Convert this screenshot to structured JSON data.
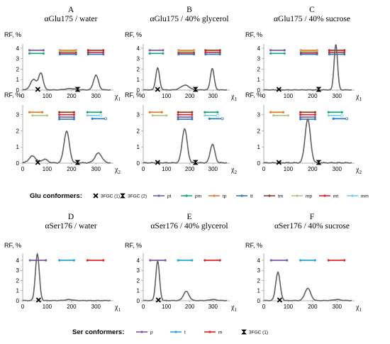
{
  "chart_data": [
    {
      "type": "line",
      "letter": "A",
      "title": "αGlu175 / water",
      "ylabel": "RF, %",
      "xlabel": "χ",
      "xsub": "1",
      "xlim": [
        0,
        360
      ],
      "ylim": [
        0,
        4.4
      ],
      "xticks": [
        0,
        100,
        200,
        300
      ],
      "yticks": [
        0,
        1,
        2,
        3,
        4
      ],
      "peaks": [
        [
          45,
          1.0,
          13
        ],
        [
          75,
          1.55,
          9
        ],
        [
          195,
          0.12,
          20
        ],
        [
          300,
          1.4,
          10
        ]
      ],
      "markers": [
        {
          "kind": "fgc1",
          "x": 62,
          "y": 0
        },
        {
          "kind": "fgc2",
          "x": 225,
          "y": 0
        }
      ],
      "bars": [
        {
          "c": "pt",
          "x1": 28,
          "x2": 85,
          "y": 3.8
        },
        {
          "c": "pm",
          "x1": 28,
          "x2": 85,
          "y": 3.5
        },
        {
          "c": "tp",
          "x1": 152,
          "x2": 218,
          "y": 3.8
        },
        {
          "c": "mp",
          "x1": 152,
          "x2": 218,
          "y": 3.68
        },
        {
          "c": "mt",
          "x1": 152,
          "x2": 218,
          "y": 3.55
        },
        {
          "c": "tt",
          "x1": 152,
          "x2": 218,
          "y": 3.42
        },
        {
          "c": "tm",
          "x1": 268,
          "x2": 330,
          "y": 3.8
        },
        {
          "c": "mt",
          "x1": 268,
          "x2": 330,
          "y": 3.6
        },
        {
          "c": "tt",
          "x1": 268,
          "x2": 330,
          "y": 3.42
        }
      ]
    },
    {
      "type": "line",
      "letter": "B",
      "title": "αGlu175 / 40% glycerol",
      "ylabel": "RF, %",
      "xlabel": "χ",
      "xsub": "1",
      "xlim": [
        0,
        360
      ],
      "ylim": [
        0,
        4.4
      ],
      "xticks": [
        0,
        100,
        200,
        300
      ],
      "yticks": [
        0,
        1,
        2,
        3,
        4
      ],
      "peaks": [
        [
          62,
          2.1,
          8
        ],
        [
          180,
          0.45,
          18
        ],
        [
          297,
          2.05,
          8
        ]
      ],
      "markers": [
        {
          "kind": "fgc1",
          "x": 62,
          "y": 0
        },
        {
          "kind": "fgc2",
          "x": 225,
          "y": 0
        }
      ],
      "bars": [
        {
          "c": "pt",
          "x1": 28,
          "x2": 85,
          "y": 3.8
        },
        {
          "c": "pm",
          "x1": 28,
          "x2": 85,
          "y": 3.5
        },
        {
          "c": "tp",
          "x1": 152,
          "x2": 218,
          "y": 3.8
        },
        {
          "c": "mp",
          "x1": 152,
          "x2": 218,
          "y": 3.68
        },
        {
          "c": "mt",
          "x1": 152,
          "x2": 218,
          "y": 3.55
        },
        {
          "c": "tt",
          "x1": 152,
          "x2": 218,
          "y": 3.42
        },
        {
          "c": "tm",
          "x1": 268,
          "x2": 330,
          "y": 3.8
        },
        {
          "c": "mt",
          "x1": 268,
          "x2": 330,
          "y": 3.6
        },
        {
          "c": "tt",
          "x1": 268,
          "x2": 330,
          "y": 3.42
        }
      ]
    },
    {
      "type": "line",
      "letter": "C",
      "title": "αGlu175 / 40% sucrose",
      "ylabel": "RF, %",
      "xlabel": "χ",
      "xsub": "1",
      "xlim": [
        0,
        360
      ],
      "ylim": [
        0,
        4.4
      ],
      "xticks": [
        0,
        100,
        200,
        300
      ],
      "yticks": [
        0,
        1,
        2,
        3,
        4
      ],
      "peaks": [
        [
          295,
          4.35,
          7
        ]
      ],
      "markers": [
        {
          "kind": "fgc1",
          "x": 62,
          "y": 0
        },
        {
          "kind": "fgc2",
          "x": 225,
          "y": 0
        }
      ],
      "bars": [
        {
          "c": "pt",
          "x1": 28,
          "x2": 85,
          "y": 3.8
        },
        {
          "c": "pm",
          "x1": 28,
          "x2": 85,
          "y": 3.5
        },
        {
          "c": "tp",
          "x1": 152,
          "x2": 218,
          "y": 3.8
        },
        {
          "c": "mp",
          "x1": 152,
          "x2": 218,
          "y": 3.68
        },
        {
          "c": "mt",
          "x1": 152,
          "x2": 218,
          "y": 3.55
        },
        {
          "c": "tt",
          "x1": 152,
          "x2": 218,
          "y": 3.42
        },
        {
          "c": "tm",
          "x1": 268,
          "x2": 330,
          "y": 3.8
        },
        {
          "c": "mt",
          "x1": 268,
          "x2": 330,
          "y": 3.6
        },
        {
          "c": "tt",
          "x1": 268,
          "x2": 330,
          "y": 3.42
        }
      ]
    },
    {
      "type": "line",
      "letter": "",
      "title": "",
      "ylabel": "RF, %",
      "xlabel": "χ",
      "xsub": "2",
      "xlim": [
        0,
        360
      ],
      "ylim": [
        0,
        3.6
      ],
      "xticks": [
        0,
        100,
        200,
        300
      ],
      "yticks": [
        0,
        1,
        2,
        3
      ],
      "peaks": [
        [
          40,
          0.42,
          14
        ],
        [
          90,
          0.22,
          12
        ],
        [
          180,
          1.95,
          11
        ],
        [
          310,
          0.6,
          14
        ]
      ],
      "markers": [
        {
          "kind": "fgc1",
          "x": 62,
          "y": 0
        },
        {
          "kind": "fgc2",
          "x": 225,
          "y": 0
        }
      ],
      "bars": [
        {
          "c": "tp",
          "x1": 28,
          "x2": 80,
          "y": 3.15
        },
        {
          "c": "mp",
          "x1": 40,
          "x2": 100,
          "y": 2.95
        },
        {
          "c": "tm",
          "x1": 150,
          "x2": 210,
          "y": 3.15
        },
        {
          "c": "mt",
          "x1": 150,
          "x2": 210,
          "y": 3.0
        },
        {
          "c": "pt",
          "x1": 150,
          "x2": 210,
          "y": 2.85
        },
        {
          "c": "tt",
          "x1": 150,
          "x2": 210,
          "y": 2.72
        },
        {
          "c": "pm",
          "x1": 265,
          "x2": 320,
          "y": 3.15
        },
        {
          "c": "mm",
          "x1": 265,
          "x2": 320,
          "y": 2.95
        },
        {
          "c": "tt",
          "x1": 285,
          "x2": 340,
          "y": 2.75
        }
      ]
    },
    {
      "type": "line",
      "letter": "",
      "title": "",
      "ylabel": "RF, %",
      "xlabel": "χ",
      "xsub": "2",
      "xlim": [
        0,
        360
      ],
      "ylim": [
        0,
        3.6
      ],
      "xticks": [
        0,
        100,
        200,
        300
      ],
      "yticks": [
        0,
        1,
        2,
        3
      ],
      "peaks": [
        [
          178,
          2.1,
          11
        ],
        [
          298,
          1.15,
          10
        ]
      ],
      "markers": [
        {
          "kind": "fgc1",
          "x": 62,
          "y": 0
        },
        {
          "kind": "fgc2",
          "x": 225,
          "y": 0
        }
      ],
      "bars": [
        {
          "c": "tp",
          "x1": 28,
          "x2": 80,
          "y": 3.15
        },
        {
          "c": "mp",
          "x1": 40,
          "x2": 100,
          "y": 2.95
        },
        {
          "c": "tm",
          "x1": 150,
          "x2": 210,
          "y": 3.15
        },
        {
          "c": "mt",
          "x1": 150,
          "x2": 210,
          "y": 3.0
        },
        {
          "c": "pt",
          "x1": 150,
          "x2": 210,
          "y": 2.85
        },
        {
          "c": "tt",
          "x1": 150,
          "x2": 210,
          "y": 2.72
        },
        {
          "c": "pm",
          "x1": 265,
          "x2": 320,
          "y": 3.15
        },
        {
          "c": "mm",
          "x1": 265,
          "x2": 320,
          "y": 2.95
        },
        {
          "c": "tt",
          "x1": 285,
          "x2": 340,
          "y": 2.75
        }
      ]
    },
    {
      "type": "line",
      "letter": "",
      "title": "",
      "ylabel": "RF, %",
      "xlabel": "χ",
      "xsub": "2",
      "xlim": [
        0,
        360
      ],
      "ylim": [
        0,
        3.6
      ],
      "xticks": [
        0,
        100,
        200,
        300
      ],
      "yticks": [
        0,
        1,
        2,
        3
      ],
      "peaks": [
        [
          180,
          2.7,
          11
        ]
      ],
      "markers": [
        {
          "kind": "fgc1",
          "x": 62,
          "y": 0
        },
        {
          "kind": "fgc2",
          "x": 225,
          "y": 0
        }
      ],
      "bars": [
        {
          "c": "tp",
          "x1": 28,
          "x2": 80,
          "y": 3.15
        },
        {
          "c": "mp",
          "x1": 40,
          "x2": 100,
          "y": 2.95
        },
        {
          "c": "tm",
          "x1": 150,
          "x2": 210,
          "y": 3.15
        },
        {
          "c": "mt",
          "x1": 150,
          "x2": 210,
          "y": 3.0
        },
        {
          "c": "pt",
          "x1": 150,
          "x2": 210,
          "y": 2.85
        },
        {
          "c": "tt",
          "x1": 150,
          "x2": 210,
          "y": 2.72
        },
        {
          "c": "pm",
          "x1": 265,
          "x2": 320,
          "y": 3.15
        },
        {
          "c": "mm",
          "x1": 265,
          "x2": 320,
          "y": 2.95
        },
        {
          "c": "tt",
          "x1": 285,
          "x2": 340,
          "y": 2.75
        }
      ]
    },
    {
      "type": "line",
      "letter": "D",
      "title": "αSer176 / water",
      "ylabel": "RF, %",
      "xlabel": "χ",
      "xsub": "1",
      "xlim": [
        0,
        360
      ],
      "ylim": [
        0,
        4.7
      ],
      "xticks": [
        0,
        100,
        200,
        300
      ],
      "yticks": [
        0,
        1,
        2,
        3,
        4
      ],
      "peaks": [
        [
          60,
          4.6,
          8
        ],
        [
          190,
          0.1,
          15
        ]
      ],
      "markers": [
        {
          "kind": "fgc1",
          "x": 65,
          "y": 0
        }
      ],
      "bars": [
        {
          "c": "p",
          "x1": 30,
          "x2": 95,
          "y": 4.0
        },
        {
          "c": "t",
          "x1": 150,
          "x2": 210,
          "y": 4.0
        },
        {
          "c": "m",
          "x1": 265,
          "x2": 330,
          "y": 4.0
        }
      ]
    },
    {
      "type": "line",
      "letter": "E",
      "title": "αSer176 / 40% glycerol",
      "ylabel": "RF, %",
      "xlabel": "χ",
      "xsub": "1",
      "xlim": [
        0,
        360
      ],
      "ylim": [
        0,
        4.7
      ],
      "xticks": [
        0,
        100,
        200,
        300
      ],
      "yticks": [
        0,
        1,
        2,
        3,
        4
      ],
      "peaks": [
        [
          62,
          3.9,
          8
        ],
        [
          185,
          0.9,
          12
        ],
        [
          300,
          0.1,
          15
        ]
      ],
      "markers": [
        {
          "kind": "fgc1",
          "x": 65,
          "y": 0
        }
      ],
      "bars": [
        {
          "c": "p",
          "x1": 30,
          "x2": 95,
          "y": 4.0
        },
        {
          "c": "t",
          "x1": 150,
          "x2": 210,
          "y": 4.0
        },
        {
          "c": "m",
          "x1": 265,
          "x2": 330,
          "y": 4.0
        }
      ]
    },
    {
      "type": "line",
      "letter": "F",
      "title": "αSer176 / 40% sucrose",
      "ylabel": "RF, %",
      "xlabel": "χ",
      "xsub": "1",
      "xlim": [
        0,
        360
      ],
      "ylim": [
        0,
        4.7
      ],
      "xticks": [
        0,
        100,
        200,
        300
      ],
      "yticks": [
        0,
        1,
        2,
        3,
        4
      ],
      "peaks": [
        [
          58,
          2.8,
          9
        ],
        [
          180,
          1.2,
          12
        ],
        [
          300,
          0.1,
          15
        ]
      ],
      "markers": [
        {
          "kind": "fgc1",
          "x": 65,
          "y": 0
        }
      ],
      "bars": [
        {
          "c": "p",
          "x1": 30,
          "x2": 95,
          "y": 4.0
        },
        {
          "c": "t",
          "x1": 150,
          "x2": 210,
          "y": 4.0
        },
        {
          "c": "m",
          "x1": 265,
          "x2": 330,
          "y": 4.0
        }
      ]
    }
  ],
  "colors": {
    "pt": "#7b5aa6",
    "pm": "#1fa37a",
    "tp": "#e57e2f",
    "tt": "#2c7bc0",
    "tm": "#9b3a1f",
    "mp": "#a6c97e",
    "mt": "#e4222c",
    "mm": "#6fd0e0",
    "p": "#7b5aa6",
    "t": "#26a5d8",
    "m": "#e4222c",
    "curve": "#606060"
  },
  "legends": {
    "glu": {
      "title": "Glu conformers:",
      "items": [
        {
          "kind": "fgc1",
          "label": "3FGC (1)"
        },
        {
          "kind": "fgc2",
          "label": "3FGC (2)"
        },
        {
          "kind": "line",
          "c": "pt",
          "label": "pt"
        },
        {
          "kind": "line",
          "c": "pm",
          "label": "pm"
        },
        {
          "kind": "line",
          "c": "tp",
          "label": "tp"
        },
        {
          "kind": "line",
          "c": "tt",
          "label": "tt"
        },
        {
          "kind": "line",
          "c": "tm",
          "label": "tm"
        },
        {
          "kind": "line",
          "c": "mp",
          "label": "mp"
        },
        {
          "kind": "line",
          "c": "mt",
          "label": "mt"
        },
        {
          "kind": "line",
          "c": "mm",
          "label": "mm"
        }
      ]
    },
    "ser": {
      "title": "Ser conformers:",
      "items": [
        {
          "kind": "line",
          "c": "p",
          "label": "p"
        },
        {
          "kind": "line",
          "c": "t",
          "label": "t"
        },
        {
          "kind": "line",
          "c": "m",
          "label": "m"
        },
        {
          "kind": "fgc2",
          "label": "3FGC (1)"
        }
      ]
    }
  }
}
